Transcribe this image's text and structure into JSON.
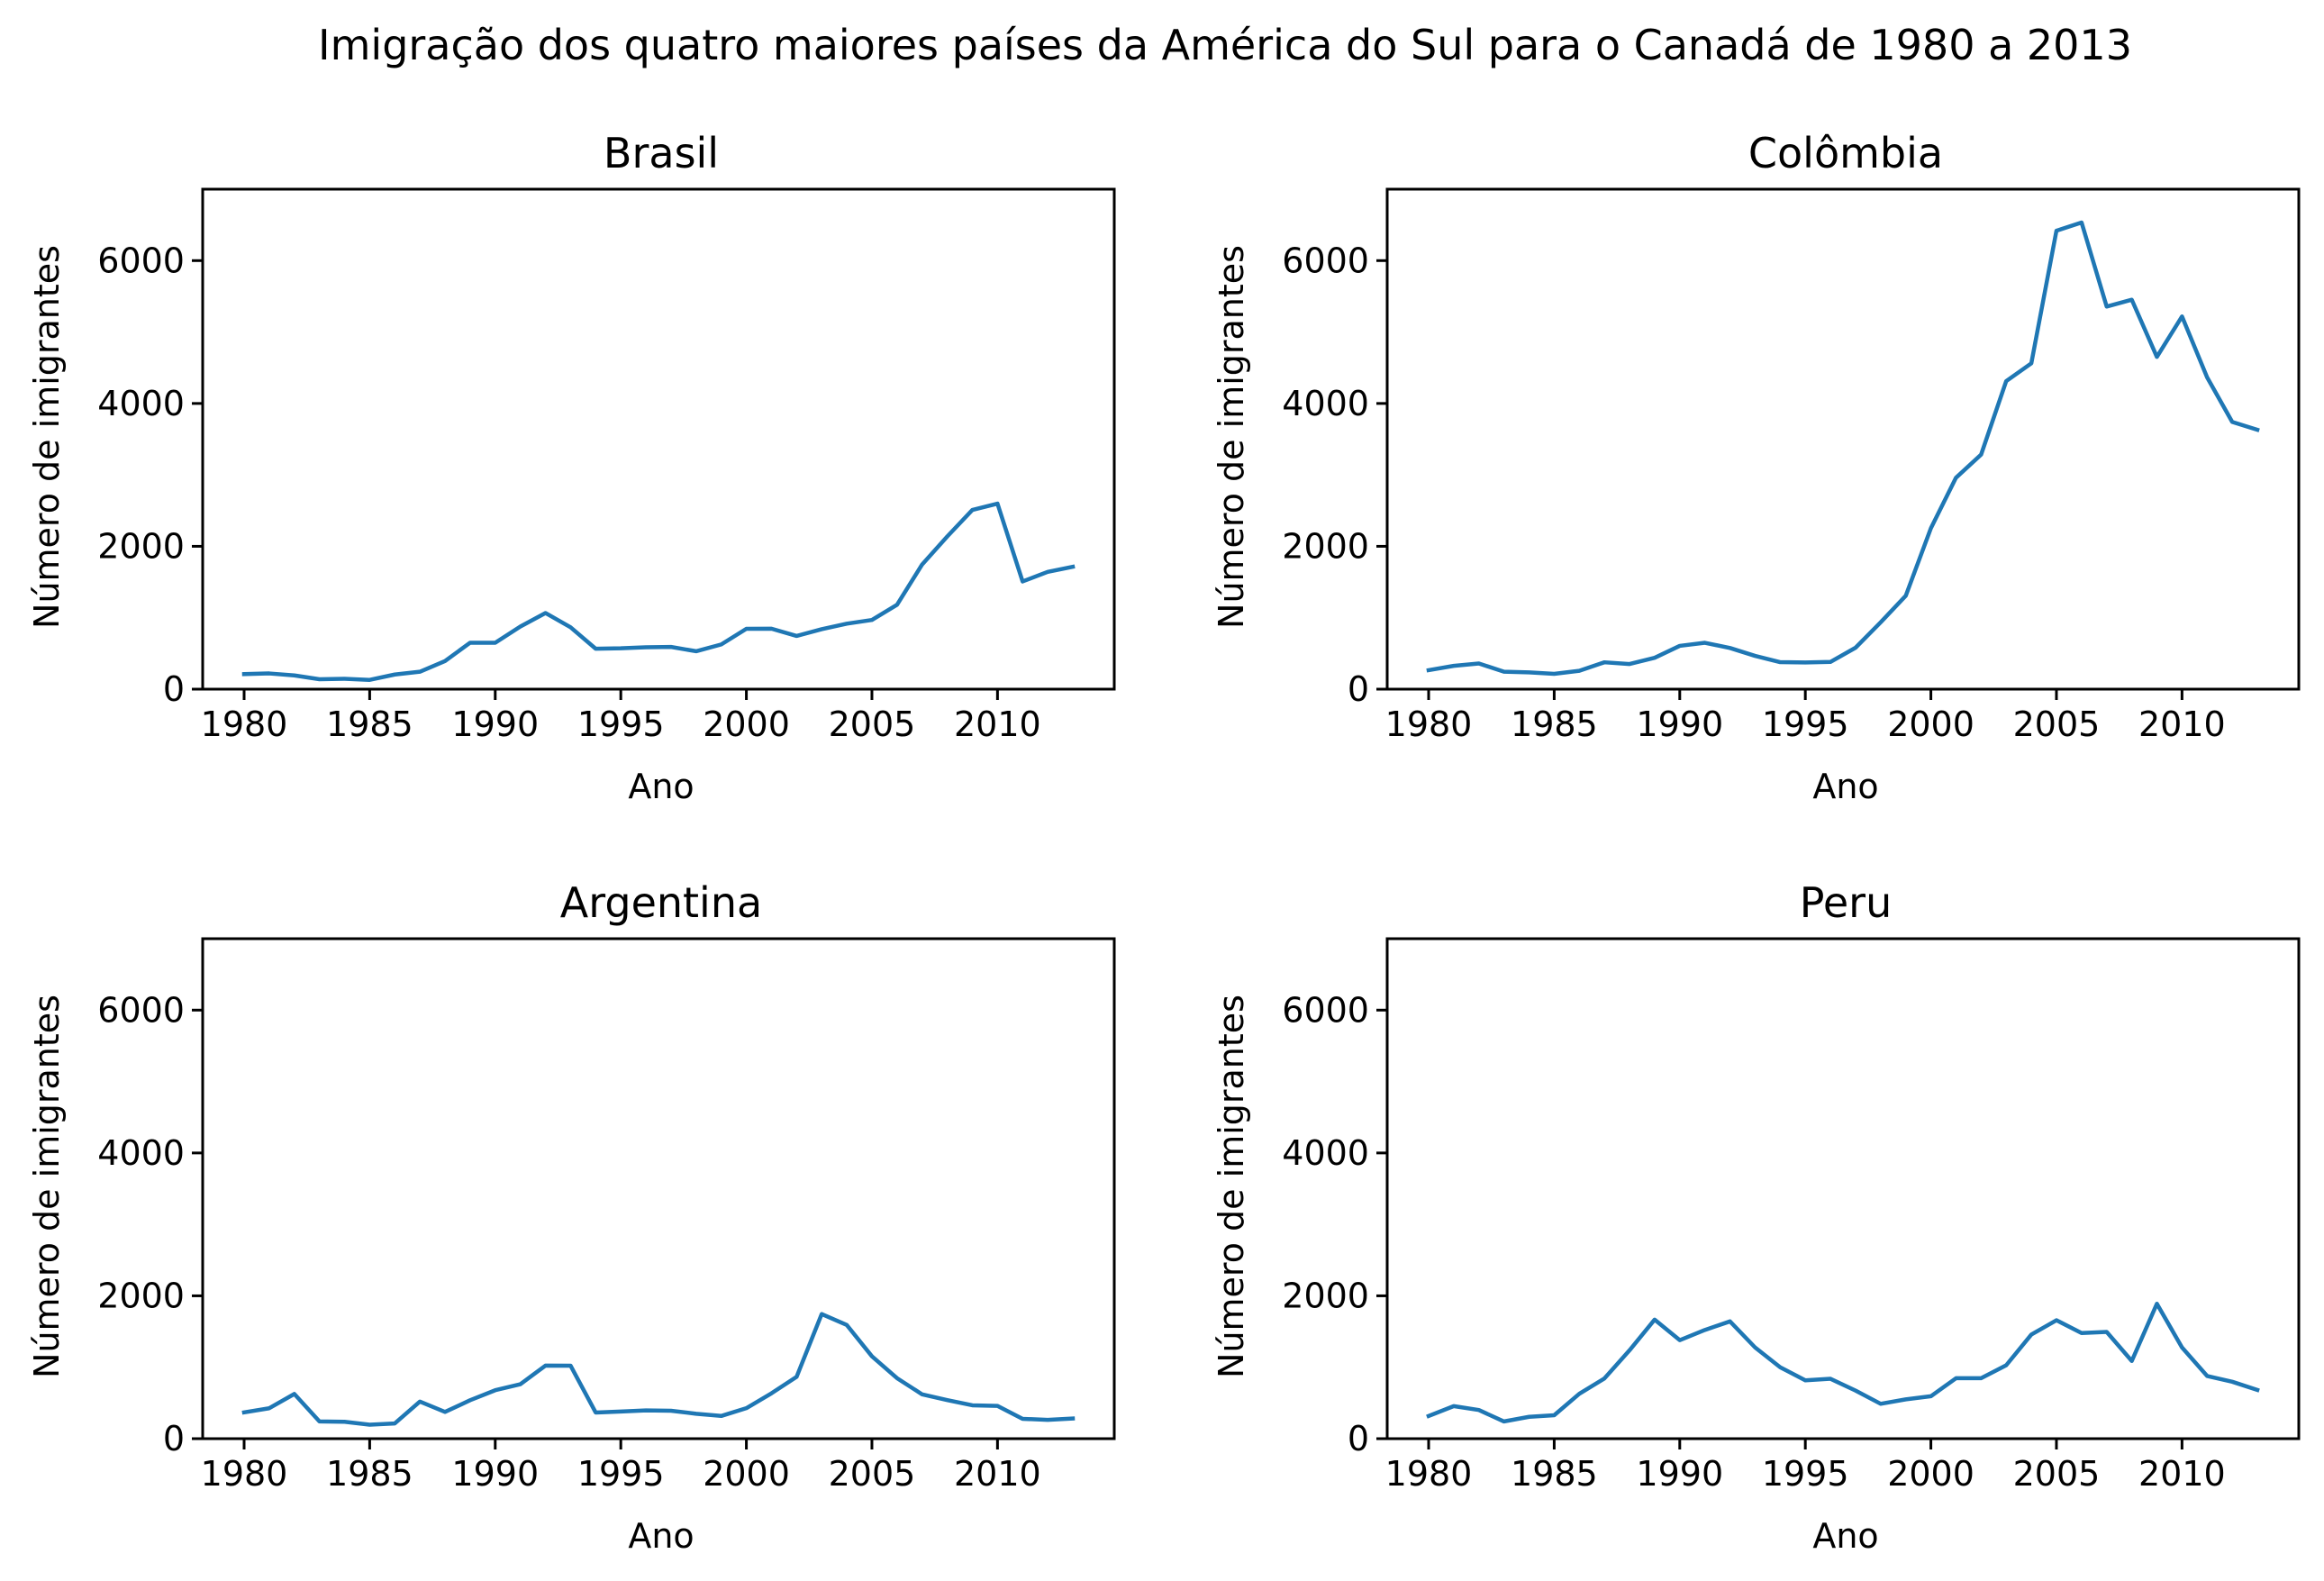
{
  "figure": {
    "title": "Imigração dos quatro maiores países da América do Sul para o Canadá de 1980 a 2013",
    "line_color": "#1f77b4"
  },
  "chart_data": [
    {
      "type": "line",
      "title": "Brasil",
      "xlabel": "Ano",
      "ylabel": "Número de imigrantes",
      "xlim": [
        1978.35,
        2014.65
      ],
      "ylim": [
        0,
        7000
      ],
      "xticks": [
        1980,
        1985,
        1990,
        1995,
        2000,
        2005,
        2010
      ],
      "yticks": [
        0,
        2000,
        4000,
        6000
      ],
      "grid": false,
      "x": [
        1980,
        1981,
        1982,
        1983,
        1984,
        1985,
        1986,
        1987,
        1988,
        1989,
        1990,
        1991,
        1992,
        1993,
        1994,
        1995,
        1996,
        1997,
        1998,
        1999,
        2000,
        2001,
        2002,
        2003,
        2004,
        2005,
        2006,
        2007,
        2008,
        2009,
        2010,
        2011,
        2012,
        2013
      ],
      "series": [
        {
          "values": [
            211,
            220,
            192,
            139,
            145,
            130,
            205,
            244,
            394,
            650,
            650,
            877,
            1066,
            866,
            566,
            572,
            586,
            591,
            531,
            626,
            845,
            847,
            745,
            839,
            917,
            969,
            1181,
            1746,
            2138,
            2509,
            2598,
            1508,
            1642,
            1714
          ]
        }
      ]
    },
    {
      "type": "line",
      "title": "Colômbia",
      "xlabel": "Ano",
      "ylabel": "Número de imigrantes",
      "xlim": [
        1978.35,
        2014.65
      ],
      "ylim": [
        0,
        7000
      ],
      "xticks": [
        1980,
        1985,
        1990,
        1995,
        2000,
        2005,
        2010
      ],
      "yticks": [
        0,
        2000,
        4000,
        6000
      ],
      "grid": false,
      "x": [
        1980,
        1981,
        1982,
        1983,
        1984,
        1985,
        1986,
        1987,
        1988,
        1989,
        1990,
        1991,
        1992,
        1993,
        1994,
        1995,
        1996,
        1997,
        1998,
        1999,
        2000,
        2001,
        2002,
        2003,
        2004,
        2005,
        2006,
        2007,
        2008,
        2009,
        2010,
        2011,
        2012,
        2013
      ],
      "series": [
        {
          "values": [
            266,
            326,
            360,
            244,
            235,
            214,
            257,
            376,
            352,
            439,
            606,
            649,
            576,
            466,
            378,
            373,
            381,
            580,
            936,
            1308,
            2253,
            2960,
            3284,
            4313,
            4562,
            6418,
            6534,
            5357,
            5452,
            4652,
            5218,
            4366,
            3741,
            3631
          ]
        }
      ]
    },
    {
      "type": "line",
      "title": "Argentina",
      "xlabel": "Ano",
      "ylabel": "Número de imigrantes",
      "xlim": [
        1978.35,
        2014.65
      ],
      "ylim": [
        0,
        7000
      ],
      "xticks": [
        1980,
        1985,
        1990,
        1995,
        2000,
        2005,
        2010
      ],
      "yticks": [
        0,
        2000,
        4000,
        6000
      ],
      "grid": false,
      "x": [
        1980,
        1981,
        1982,
        1983,
        1984,
        1985,
        1986,
        1987,
        1988,
        1989,
        1990,
        1991,
        1992,
        1993,
        1994,
        1995,
        1996,
        1997,
        1998,
        1999,
        2000,
        2001,
        2002,
        2003,
        2004,
        2005,
        2006,
        2007,
        2008,
        2009,
        2010,
        2011,
        2012,
        2013
      ],
      "series": [
        {
          "values": [
            368,
            426,
            626,
            241,
            237,
            196,
            213,
            519,
            374,
            538,
            678,
            763,
            1023,
            1022,
            366,
            380,
            396,
            391,
            349,
            318,
            427,
            635,
            865,
            1745,
            1591,
            1153,
            847,
            620,
            540,
            467,
            459,
            278,
            263,
            282
          ]
        }
      ]
    },
    {
      "type": "line",
      "title": "Peru",
      "xlabel": "Ano",
      "ylabel": "Número de imigrantes",
      "xlim": [
        1978.35,
        2014.65
      ],
      "ylim": [
        0,
        7000
      ],
      "xticks": [
        1980,
        1985,
        1990,
        1995,
        2000,
        2005,
        2010
      ],
      "yticks": [
        0,
        2000,
        4000,
        6000
      ],
      "grid": false,
      "x": [
        1980,
        1981,
        1982,
        1983,
        1984,
        1985,
        1986,
        1987,
        1988,
        1989,
        1990,
        1991,
        1992,
        1993,
        1994,
        1995,
        1996,
        1997,
        1998,
        1999,
        2000,
        2001,
        2002,
        2003,
        2004,
        2005,
        2006,
        2007,
        2008,
        2009,
        2010,
        2011,
        2012,
        2013
      ],
      "series": [
        {
          "values": [
            317,
            456,
            401,
            241,
            306,
            328,
            628,
            843,
            1237,
            1667,
            1379,
            1522,
            1642,
            1277,
            1000,
            817,
            839,
            673,
            488,
            550,
            594,
            846,
            846,
            1028,
            1457,
            1658,
            1479,
            1495,
            1088,
            1889,
            1277,
            878,
            797,
            682
          ]
        }
      ]
    }
  ]
}
